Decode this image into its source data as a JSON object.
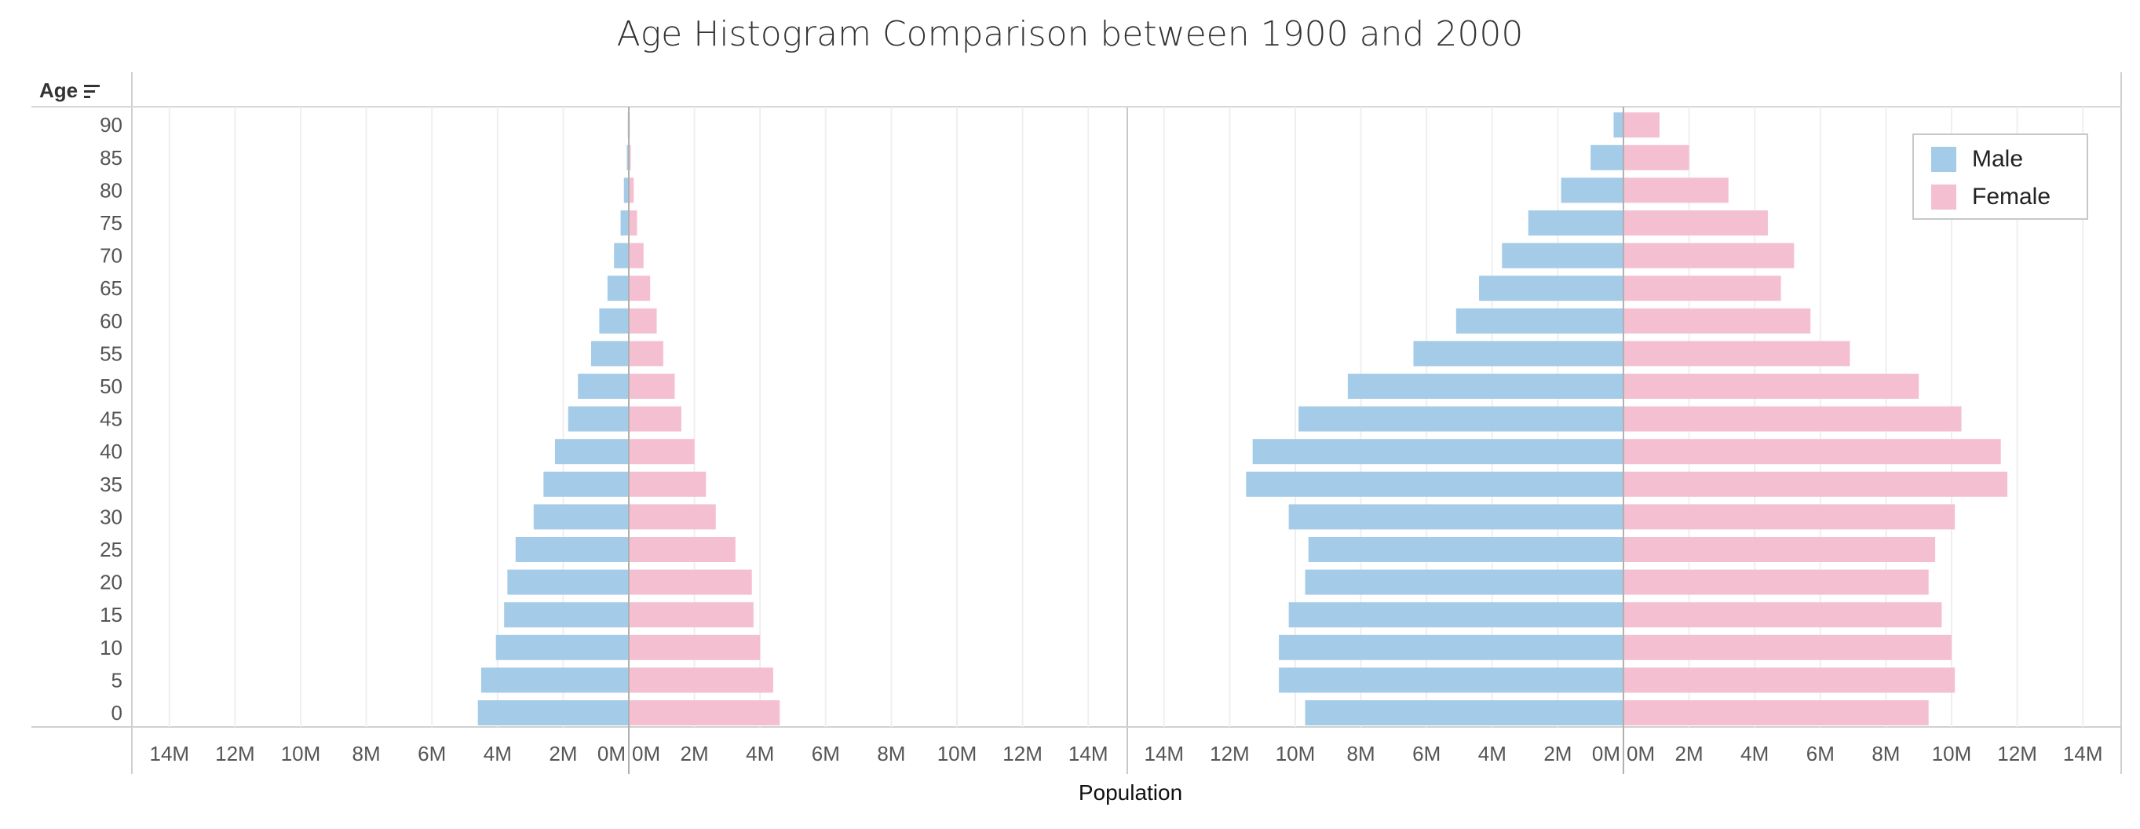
{
  "chart_data": {
    "type": "bar",
    "title": "Age Histogram Comparison between 1900 and 2000",
    "xlabel": "Population",
    "ylabel": "Age",
    "orientation": "horizontal",
    "layout": "butterfly",
    "grid": true,
    "legend_position": "top-right",
    "legend": [
      "Male",
      "Female"
    ],
    "colors": {
      "Male": "#a4cbe8",
      "Female": "#f5bfd2"
    },
    "age_groups": [
      "0",
      "5",
      "10",
      "15",
      "20",
      "25",
      "30",
      "35",
      "40",
      "45",
      "50",
      "55",
      "60",
      "65",
      "70",
      "75",
      "80",
      "85",
      "90"
    ],
    "x_ticks": [
      "14M",
      "12M",
      "10M",
      "8M",
      "6M",
      "4M",
      "2M",
      "0M",
      "0M",
      "2M",
      "4M",
      "6M",
      "8M",
      "10M",
      "12M",
      "14M"
    ],
    "xlim": [
      -14000000,
      14000000
    ],
    "panels": [
      {
        "year": 1900,
        "series": [
          {
            "name": "Male",
            "values": [
              4600000,
              4500000,
              4050000,
              3800000,
              3700000,
              3450000,
              2900000,
              2600000,
              2250000,
              1850000,
              1550000,
              1150000,
              900000,
              650000,
              450000,
              250000,
              150000,
              60000,
              30000
            ]
          },
          {
            "name": "Female",
            "values": [
              4600000,
              4400000,
              4000000,
              3800000,
              3750000,
              3250000,
              2650000,
              2350000,
              2000000,
              1600000,
              1400000,
              1050000,
              850000,
              650000,
              450000,
              250000,
              150000,
              60000,
              30000
            ]
          }
        ]
      },
      {
        "year": 2000,
        "series": [
          {
            "name": "Male",
            "values": [
              9700000,
              10500000,
              10500000,
              10200000,
              9700000,
              9600000,
              10200000,
              11500000,
              11300000,
              9900000,
              8400000,
              6400000,
              5100000,
              4400000,
              3700000,
              2900000,
              1900000,
              1000000,
              300000
            ]
          },
          {
            "name": "Female",
            "values": [
              9300000,
              10100000,
              10000000,
              9700000,
              9300000,
              9500000,
              10100000,
              11700000,
              11500000,
              10300000,
              9000000,
              6900000,
              5700000,
              4800000,
              5200000,
              4400000,
              3200000,
              2000000,
              1100000
            ]
          }
        ]
      }
    ]
  }
}
